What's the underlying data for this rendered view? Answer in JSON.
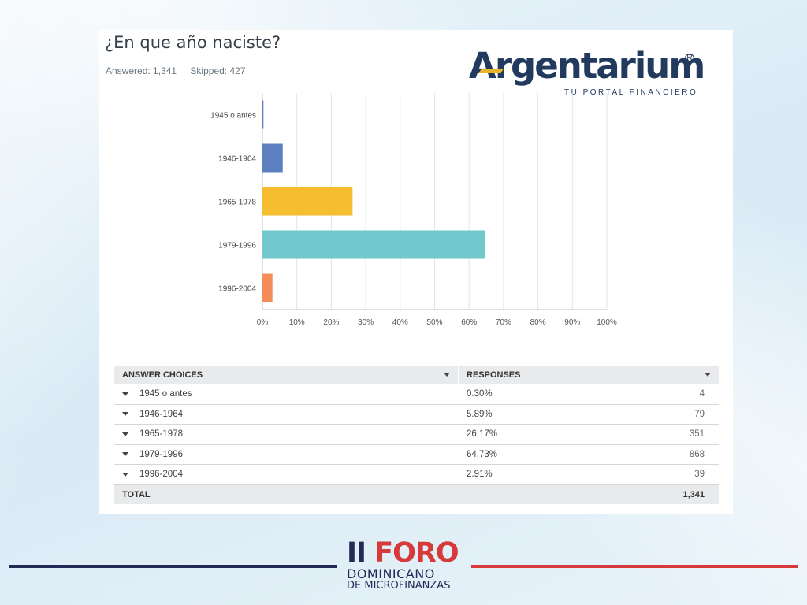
{
  "survey": {
    "question": "¿En que año naciste?",
    "answered": "Answered: 1,341",
    "skipped": "Skipped: 427"
  },
  "logo": {
    "name": "Argentarium",
    "reg": "R",
    "slogan": "TU PORTAL FINANCIERO"
  },
  "chart_data": {
    "type": "bar",
    "orientation": "horizontal",
    "categories": [
      "1945 o antes",
      "1946-1964",
      "1965-1978",
      "1979-1996",
      "1996-2004"
    ],
    "values": [
      0.3,
      5.89,
      26.17,
      64.73,
      2.91
    ],
    "colors": [
      "#5b7fbf",
      "#5b7fbf",
      "#f6bd2e",
      "#72c8cc",
      "#f58d5a"
    ],
    "xlim": [
      0,
      100
    ],
    "xticks": [
      "0%",
      "10%",
      "20%",
      "30%",
      "40%",
      "50%",
      "60%",
      "70%",
      "80%",
      "90%",
      "100%"
    ],
    "grid": true
  },
  "table": {
    "header": {
      "choices": "ANSWER CHOICES",
      "responses": "RESPONSES"
    },
    "rows": [
      {
        "choice": "1945 o antes",
        "percent": "0.30%",
        "count": "4"
      },
      {
        "choice": "1946-1964",
        "percent": "5.89%",
        "count": "79"
      },
      {
        "choice": "1965-1978",
        "percent": "26.17%",
        "count": "351"
      },
      {
        "choice": "1979-1996",
        "percent": "64.73%",
        "count": "868"
      },
      {
        "choice": "1996-2004",
        "percent": "2.91%",
        "count": "39"
      }
    ],
    "total_label": "TOTAL",
    "total_value": "1,341"
  },
  "footer": {
    "foro_roman": "II",
    "foro_word": "FORO",
    "line1": "DOMINICANO",
    "line2": "DE MICROFINANZAS"
  }
}
